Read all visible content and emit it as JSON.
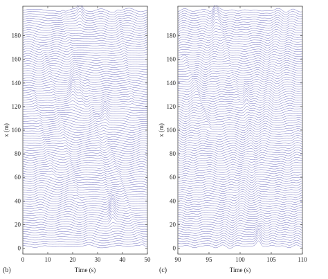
{
  "chart_data": [
    {
      "type": "line",
      "panel_label": "(b)",
      "xlabel": "Time (s)",
      "ylabel": "x (m)",
      "xlim": [
        0,
        50
      ],
      "ylim": [
        -5,
        205
      ],
      "x_ticks": [
        0,
        10,
        20,
        30,
        40,
        50
      ],
      "y_ticks": [
        0,
        20,
        40,
        60,
        80,
        100,
        120,
        140,
        160,
        180
      ],
      "trace_count": 101,
      "trace_spacing_m": 2,
      "trace_color": "#3a3aa8",
      "grid": false,
      "legend": "none",
      "features": [
        {
          "x_start": 24,
          "y_start": 120,
          "x_end": 16,
          "y_end": 200
        },
        {
          "x_start": 36,
          "y_start": 20,
          "x_end": 26,
          "y_end": 140
        },
        {
          "x_start": 22,
          "y_start": 40,
          "x_end": 8,
          "y_end": 170
        },
        {
          "x_start": 48,
          "y_start": 0,
          "x_end": 30,
          "y_end": 110
        },
        {
          "x_start": 12,
          "y_start": 60,
          "x_end": 4,
          "y_end": 130
        },
        {
          "x_start": 44,
          "y_start": 120,
          "x_end": 38,
          "y_end": 200
        }
      ],
      "peaks": [
        {
          "x": 36,
          "y": 30,
          "amp": 1.8
        },
        {
          "x": 33,
          "y": 110,
          "amp": 1.4
        },
        {
          "x": 20,
          "y": 130,
          "amp": 1.2
        },
        {
          "x": 23,
          "y": 198,
          "amp": 1.5
        }
      ]
    },
    {
      "type": "line",
      "panel_label": "(c)",
      "xlabel": "Time (s)",
      "ylabel": "x (m)",
      "xlim": [
        90,
        110
      ],
      "ylim": [
        -5,
        205
      ],
      "x_ticks": [
        90,
        95,
        100,
        105,
        110
      ],
      "y_ticks": [
        0,
        20,
        40,
        60,
        80,
        100,
        120,
        140,
        160,
        180
      ],
      "trace_count": 101,
      "trace_spacing_m": 2,
      "trace_color": "#3a3aa8",
      "grid": false,
      "legend": "none",
      "features": [
        {
          "x_start": 104,
          "y_start": 0,
          "x_end": 101,
          "y_end": 120
        },
        {
          "x_start": 100,
          "y_start": 120,
          "x_end": 96,
          "y_end": 200
        },
        {
          "x_start": 95,
          "y_start": 100,
          "x_end": 91,
          "y_end": 160
        }
      ],
      "peaks": [
        {
          "x": 103,
          "y": 5,
          "amp": 1.6
        },
        {
          "x": 101,
          "y": 125,
          "amp": 1.3
        },
        {
          "x": 96,
          "y": 195,
          "amp": 1.4
        }
      ]
    }
  ]
}
